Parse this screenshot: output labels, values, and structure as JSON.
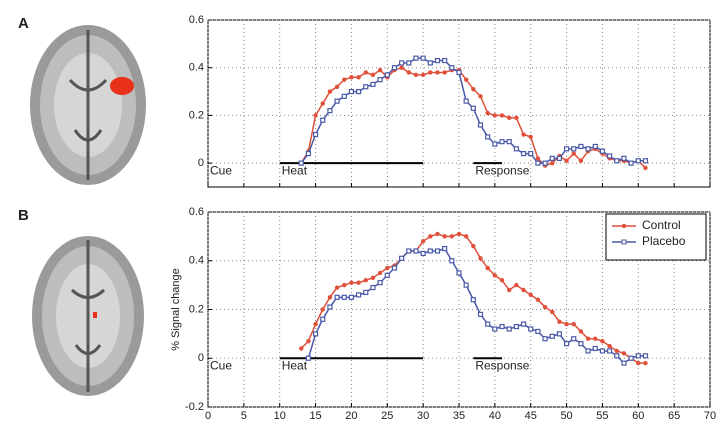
{
  "chart_data": [
    {
      "type": "line",
      "panel_label": "A",
      "x": [
        13,
        14,
        15,
        16,
        17,
        18,
        19,
        20,
        21,
        22,
        23,
        24,
        25,
        26,
        27,
        28,
        29,
        30,
        31,
        32,
        33,
        34,
        35,
        36,
        37,
        38,
        39,
        40,
        41,
        42,
        43,
        44,
        45,
        46,
        47,
        48,
        49,
        50,
        51,
        52,
        53,
        54,
        55,
        56,
        57,
        58,
        59,
        60,
        61
      ],
      "series": [
        {
          "name": "Control",
          "color": "#e0503a",
          "marker": "circle",
          "values": [
            0,
            0.05,
            0.2,
            0.25,
            0.3,
            0.32,
            0.35,
            0.36,
            0.36,
            0.38,
            0.37,
            0.39,
            0.36,
            0.39,
            0.4,
            0.38,
            0.37,
            0.37,
            0.38,
            0.38,
            0.38,
            0.39,
            0.39,
            0.35,
            0.31,
            0.28,
            0.21,
            0.2,
            0.2,
            0.19,
            0.19,
            0.12,
            0.11,
            0.02,
            -0.01,
            0,
            0.03,
            0.01,
            0.04,
            0.01,
            0.05,
            0.06,
            0.04,
            0.02,
            0.01,
            0.01,
            0,
            0.01,
            -0.02
          ]
        },
        {
          "name": "Placebo",
          "color": "#4a5aa8",
          "marker": "square",
          "values": [
            0,
            0.04,
            0.12,
            0.18,
            0.22,
            0.26,
            0.28,
            0.3,
            0.3,
            0.32,
            0.33,
            0.35,
            0.37,
            0.4,
            0.42,
            0.42,
            0.44,
            0.44,
            0.42,
            0.43,
            0.43,
            0.4,
            0.38,
            0.26,
            0.23,
            0.16,
            0.11,
            0.08,
            0.09,
            0.09,
            0.06,
            0.04,
            0.04,
            0,
            0,
            0.02,
            0.02,
            0.06,
            0.06,
            0.07,
            0.06,
            0.07,
            0.05,
            0.03,
            0.01,
            0.02,
            0,
            0.01,
            0.01
          ]
        }
      ],
      "xlim": [
        0,
        70
      ],
      "xticks": [
        0,
        5,
        10,
        15,
        20,
        25,
        30,
        35,
        40,
        45,
        50,
        55,
        60,
        65,
        70
      ],
      "xtick_labels": false,
      "ylim": [
        -0.1,
        0.6
      ],
      "yticks": [
        0,
        0.2,
        0.4,
        0.6
      ],
      "grid": true,
      "legend": false,
      "annotations": [
        {
          "text": "Cue",
          "x": 0
        },
        {
          "text": "Heat",
          "x": 10,
          "x_end": 30
        },
        {
          "text": "Response",
          "x": 37,
          "x_end": 41
        }
      ]
    },
    {
      "type": "line",
      "panel_label": "B",
      "ylabel": "% Signal change",
      "x": [
        13,
        14,
        15,
        16,
        17,
        18,
        19,
        20,
        21,
        22,
        23,
        24,
        25,
        26,
        27,
        28,
        29,
        30,
        31,
        32,
        33,
        34,
        35,
        36,
        37,
        38,
        39,
        40,
        41,
        42,
        43,
        44,
        45,
        46,
        47,
        48,
        49,
        50,
        51,
        52,
        53,
        54,
        55,
        56,
        57,
        58,
        59,
        60,
        61
      ],
      "series": [
        {
          "name": "Control",
          "color": "#e0503a",
          "marker": "circle",
          "values": [
            0.04,
            0.07,
            0.14,
            0.2,
            0.25,
            0.29,
            0.3,
            0.31,
            0.31,
            0.32,
            0.33,
            0.35,
            0.37,
            0.38,
            0.41,
            0.44,
            0.44,
            0.48,
            0.5,
            0.51,
            0.5,
            0.5,
            0.51,
            0.5,
            0.46,
            0.41,
            0.37,
            0.34,
            0.32,
            0.28,
            0.3,
            0.28,
            0.26,
            0.24,
            0.21,
            0.19,
            0.15,
            0.14,
            0.14,
            0.11,
            0.08,
            0.08,
            0.07,
            0.05,
            0.03,
            0.02,
            0,
            -0.02,
            -0.02
          ]
        },
        {
          "name": "Placebo",
          "color": "#4a5aa8",
          "marker": "square",
          "values": [
            null,
            0,
            0.1,
            0.16,
            0.21,
            0.25,
            0.25,
            0.25,
            0.26,
            0.27,
            0.29,
            0.31,
            0.34,
            0.37,
            0.41,
            0.44,
            0.44,
            0.43,
            0.44,
            0.44,
            0.45,
            0.4,
            0.35,
            0.3,
            0.24,
            0.18,
            0.14,
            0.12,
            0.13,
            0.12,
            0.13,
            0.14,
            0.12,
            0.11,
            0.08,
            0.09,
            0.1,
            0.06,
            0.08,
            0.06,
            0.03,
            0.04,
            0.03,
            0.03,
            0.01,
            -0.02,
            0,
            0.01,
            0.01
          ]
        }
      ],
      "xlim": [
        0,
        70
      ],
      "xticks": [
        0,
        5,
        10,
        15,
        20,
        25,
        30,
        35,
        40,
        45,
        50,
        55,
        60,
        65,
        70
      ],
      "xtick_labels": true,
      "ylim": [
        -0.2,
        0.6
      ],
      "yticks": [
        -0.2,
        0,
        0.2,
        0.4,
        0.6
      ],
      "grid": true,
      "legend": "upper right",
      "annotations": [
        {
          "text": "Cue",
          "x": 0
        },
        {
          "text": "Heat",
          "x": 10,
          "x_end": 30
        },
        {
          "text": "Response",
          "x": 37,
          "x_end": 41
        }
      ]
    }
  ]
}
